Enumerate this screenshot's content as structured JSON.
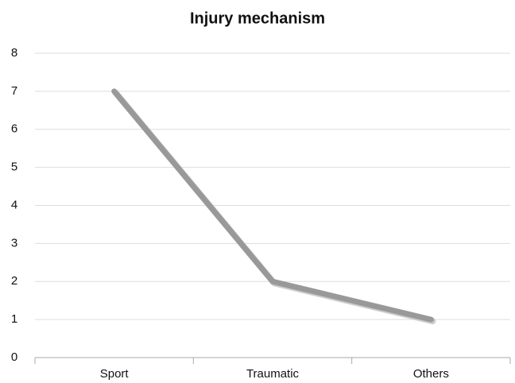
{
  "chart_data": {
    "type": "line",
    "title": "Injury mechanism",
    "categories": [
      "Sport",
      "Traumatic",
      "Others"
    ],
    "values": [
      7,
      2,
      1
    ],
    "color": "#999999",
    "ylim": [
      0,
      8
    ],
    "yticks": [
      0,
      1,
      2,
      3,
      4,
      5,
      6,
      7,
      8
    ],
    "grid": true
  }
}
